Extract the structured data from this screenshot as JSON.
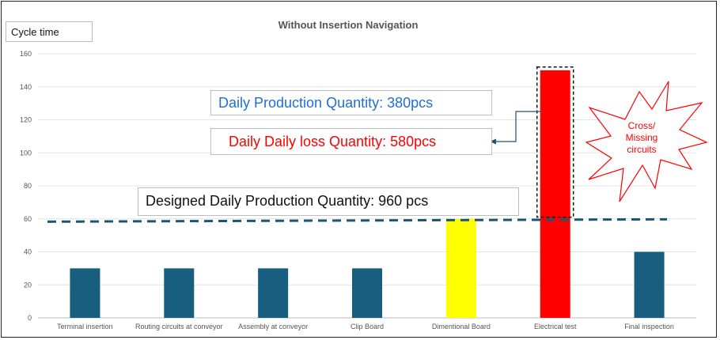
{
  "chart_data": {
    "type": "bar",
    "title": "Without Insertion Navigation",
    "ylabel": "Cycle time",
    "xlabel": "",
    "ylim": [
      0,
      160
    ],
    "yticks": [
      0,
      20,
      40,
      60,
      80,
      100,
      120,
      140,
      160
    ],
    "categories": [
      "Terminal insertion",
      "Routing circuits at conveyor",
      "Assembly at conveyor",
      "Clip Board",
      "Dimentional Board",
      "Electrical test",
      "Final inspection"
    ],
    "values": [
      30,
      30,
      30,
      30,
      60,
      150,
      40
    ],
    "bar_colors": [
      "#175e7f",
      "#175e7f",
      "#175e7f",
      "#175e7f",
      "#ffff00",
      "#ff0000",
      "#175e7f"
    ],
    "reference_line": {
      "value": 59,
      "style": "dashed",
      "color": "#1d5672"
    },
    "highlight_box": {
      "category": "Electrical test",
      "from": 61,
      "to": 151
    },
    "grid": true,
    "legend": "none"
  },
  "annotations": {
    "production": "Daily Production Quantity:  380pcs",
    "loss": "Daily Daily loss Quantity:  580pcs",
    "designed": "Designed Daily Production Quantity:  960 pcs",
    "burst": [
      "Cross/",
      "Missing",
      "circuits"
    ]
  },
  "colors": {
    "bar_primary": "#175e7f",
    "bar_warning": "#ffff00",
    "bar_bottleneck": "#ff0000",
    "production_text": "#1f6fd1",
    "loss_text": "#ff0000"
  }
}
